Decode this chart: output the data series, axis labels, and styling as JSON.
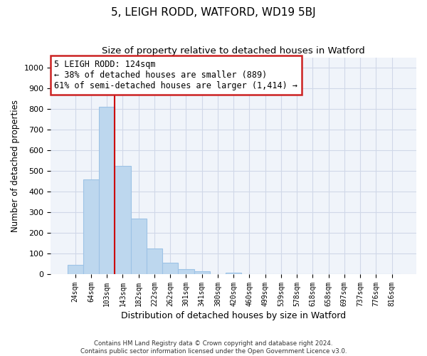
{
  "title": "5, LEIGH RODD, WATFORD, WD19 5BJ",
  "subtitle": "Size of property relative to detached houses in Watford",
  "xlabel": "Distribution of detached houses by size in Watford",
  "ylabel": "Number of detached properties",
  "bar_labels": [
    "24sqm",
    "64sqm",
    "103sqm",
    "143sqm",
    "182sqm",
    "222sqm",
    "262sqm",
    "301sqm",
    "341sqm",
    "380sqm",
    "420sqm",
    "460sqm",
    "499sqm",
    "539sqm",
    "578sqm",
    "618sqm",
    "658sqm",
    "697sqm",
    "737sqm",
    "776sqm",
    "816sqm"
  ],
  "bar_values": [
    45,
    460,
    810,
    525,
    270,
    125,
    57,
    25,
    14,
    0,
    8,
    0,
    0,
    0,
    0,
    0,
    0,
    0,
    0,
    0,
    0
  ],
  "bar_color": "#bdd7ee",
  "bar_edge_color": "#9dc3e6",
  "vline_color": "#cc0000",
  "annotation_line1": "5 LEIGH RODD: 124sqm",
  "annotation_line2": "← 38% of detached houses are smaller (889)",
  "annotation_line3": "61% of semi-detached houses are larger (1,414) →",
  "annotation_box_color": "#ffffff",
  "annotation_box_edge": "#cc2222",
  "ylim": [
    0,
    1050
  ],
  "yticks": [
    0,
    100,
    200,
    300,
    400,
    500,
    600,
    700,
    800,
    900,
    1000
  ],
  "footer_line1": "Contains HM Land Registry data © Crown copyright and database right 2024.",
  "footer_line2": "Contains public sector information licensed under the Open Government Licence v3.0.",
  "bg_color": "#ffffff",
  "plot_bg_color": "#f0f4fa",
  "grid_color": "#d0d8e8"
}
